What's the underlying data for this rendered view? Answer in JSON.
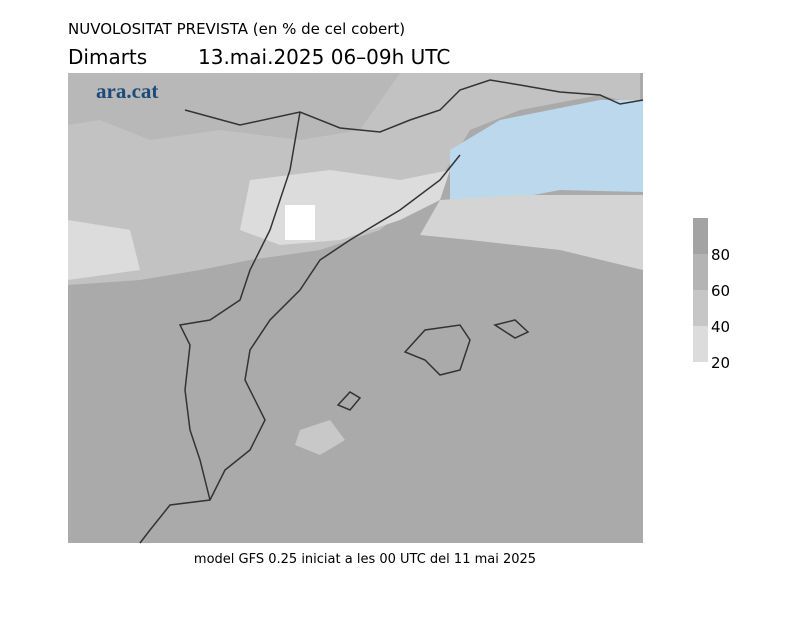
{
  "header": {
    "title": "NUVOLOSITAT PREVISTA (en % de cel cobert)",
    "day": "Dimarts",
    "date": "13.mai.2025 06–09h UTC"
  },
  "map": {
    "logo": "ara.cat"
  },
  "legend": {
    "ticks": [
      20,
      40,
      60,
      80
    ],
    "colors": [
      "#dcdcdc",
      "#c6c6c6",
      "#b4b4b4",
      "#a3a3a3"
    ]
  },
  "footer": "model GFS 0.25 iniciat a les 00 UTC del 11 mai 2025"
}
